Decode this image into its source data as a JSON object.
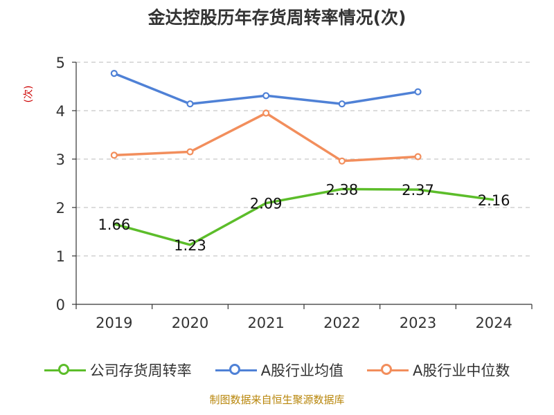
{
  "chart_data": {
    "type": "line",
    "title": "金达控股历年存货周转率情况(次)",
    "ylabel": "(次)",
    "xlabel": "",
    "categories": [
      "2019",
      "2020",
      "2021",
      "2022",
      "2023",
      "2024"
    ],
    "yticks": [
      "0",
      "1",
      "2",
      "3",
      "4",
      "5"
    ],
    "ylim": [
      0,
      5
    ],
    "grid": true,
    "legend_position": "bottom",
    "series": [
      {
        "name": "公司存货周转率",
        "color": "#5cbd2a",
        "values": [
          1.66,
          1.23,
          2.09,
          2.38,
          2.37,
          2.16
        ],
        "labels": [
          "1.66",
          "1.23",
          "2.09",
          "2.38",
          "2.37",
          "2.16"
        ]
      },
      {
        "name": "A股行业均值",
        "color": "#4f81d6",
        "values": [
          4.77,
          4.14,
          4.31,
          4.14,
          4.39,
          null
        ]
      },
      {
        "name": "A股行业中位数",
        "color": "#f28e5c",
        "values": [
          3.08,
          3.15,
          3.95,
          2.96,
          3.05,
          null
        ]
      }
    ]
  },
  "source": "制图数据来自恒生聚源数据库"
}
